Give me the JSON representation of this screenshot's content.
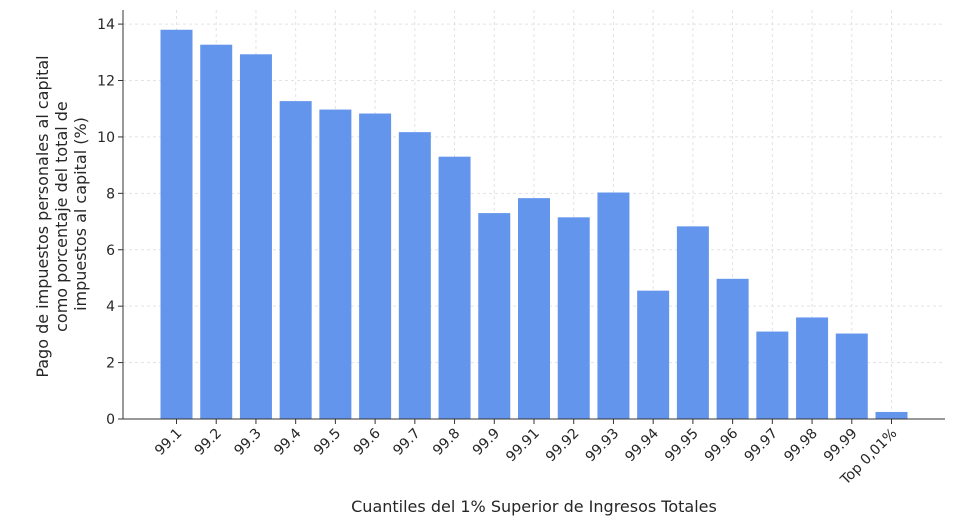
{
  "chart_data": {
    "type": "bar",
    "title": "",
    "xlabel": "Cuantiles del 1% Superior de Ingresos Totales",
    "ylabel_lines": [
      "Pago de impuestos personales al capital",
      "como porcentaje del total de",
      "impuestos al capital (%)"
    ],
    "categories": [
      "99.1",
      "99.2",
      "99.3",
      "99.4",
      "99.5",
      "99.6",
      "99.7",
      "99.8",
      "99.9",
      "99.91",
      "99.92",
      "99.93",
      "99.94",
      "99.95",
      "99.96",
      "99.97",
      "99.98",
      "99.99",
      "Top 0,01%"
    ],
    "values": [
      13.8,
      13.27,
      12.93,
      11.27,
      10.97,
      10.83,
      10.17,
      9.3,
      7.3,
      7.83,
      7.15,
      8.03,
      4.55,
      6.83,
      4.97,
      3.1,
      3.6,
      3.03,
      0.25
    ],
    "yticks": [
      "0",
      "2",
      "4",
      "6",
      "8",
      "10",
      "12",
      "14"
    ],
    "ylim": [
      0,
      14.5
    ],
    "grid": true,
    "bar_color": "#6495ed"
  }
}
